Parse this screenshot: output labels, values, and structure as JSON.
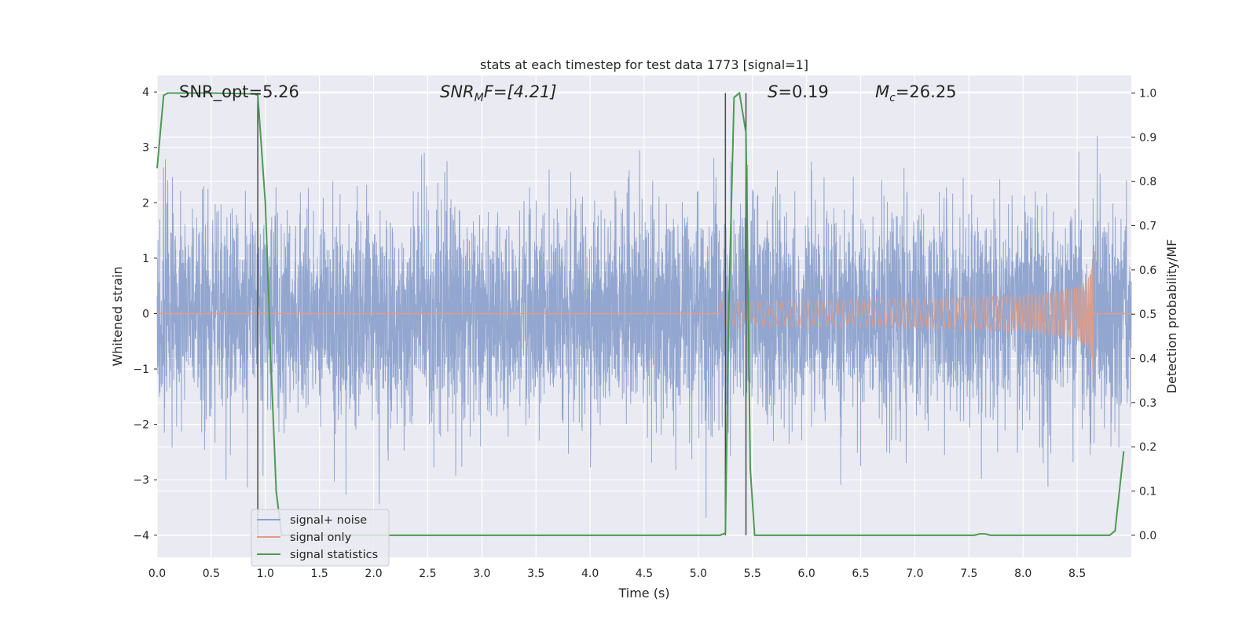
{
  "chart_data": {
    "type": "line",
    "title": "stats at each timestep for test data 1773 [signal=1]",
    "xlabel": "Time (s)",
    "ylabel": "Whitened strain",
    "ylabel_right": "Detection probability/MF",
    "xlim": [
      0,
      9
    ],
    "ylim": [
      -4.4,
      4.3
    ],
    "ylim_right": [
      -0.05,
      1.04
    ],
    "xticks": [
      0.0,
      0.5,
      1.0,
      1.5,
      2.0,
      2.5,
      3.0,
      3.5,
      4.0,
      4.5,
      5.0,
      5.5,
      6.0,
      6.5,
      7.0,
      7.5,
      8.0,
      8.5
    ],
    "xtick_labels": [
      "0.0",
      "0.5",
      "1.0",
      "1.5",
      "2.0",
      "2.5",
      "3.0",
      "3.5",
      "4.0",
      "4.5",
      "5.0",
      "5.5",
      "6.0",
      "6.5",
      "7.0",
      "7.5",
      "8.0",
      "8.5"
    ],
    "yticks": [
      -4,
      -3,
      -2,
      -1,
      0,
      1,
      2,
      3,
      4
    ],
    "ytick_labels": [
      "−4",
      "−3",
      "−2",
      "−1",
      "0",
      "1",
      "2",
      "3",
      "4"
    ],
    "yticks_right": [
      0.0,
      0.1,
      0.2,
      0.3,
      0.4,
      0.5,
      0.6,
      0.7,
      0.8,
      0.9,
      1.0
    ],
    "ytick_labels_right": [
      "0.0",
      "0.1",
      "0.2",
      "0.3",
      "0.4",
      "0.5",
      "0.6",
      "0.7",
      "0.8",
      "0.9",
      "1.0"
    ],
    "grid": true,
    "legend_position": "lower-left",
    "annotations": {
      "snr_opt": "SNR_opt=5.26",
      "snr_mf_base": "SNR",
      "snr_mf_sub": "M",
      "snr_mf_tail": "F=[4.21]",
      "s_base": "S",
      "s_tail": "=0.19",
      "mc_base": "M",
      "mc_sub": "c",
      "mc_tail": "=26.25"
    },
    "vertical_markers": [
      0.93,
      5.25,
      5.44
    ],
    "series": [
      {
        "name": "signal+ noise",
        "color": "#8da2cc",
        "axis": "left",
        "description_values": "noise-dominated whitened strain, approx. within [-4, 3.8]"
      },
      {
        "name": "signal only",
        "color": "#e39c83",
        "axis": "left",
        "chirp_end": 8.65,
        "chirp_peak": 1.2
      },
      {
        "name": "signal statistics",
        "color": "#4c9a52",
        "axis": "right",
        "x": [
          0.0,
          0.06,
          0.1,
          0.2,
          0.5,
          0.9,
          0.93,
          1.0,
          1.05,
          1.1,
          1.15,
          5.2,
          5.25,
          5.28,
          5.33,
          5.38,
          5.44,
          5.48,
          5.52,
          7.55,
          7.6,
          7.65,
          7.7,
          8.8,
          8.85,
          8.93
        ],
        "y": [
          0.83,
          0.995,
          1.0,
          1.0,
          1.0,
          0.998,
          0.995,
          0.75,
          0.4,
          0.1,
          0.0,
          0.0,
          0.005,
          0.5,
          0.99,
          1.0,
          0.91,
          0.15,
          0.0,
          0.0,
          0.003,
          0.003,
          0.0,
          0.0,
          0.01,
          0.19
        ]
      }
    ]
  }
}
